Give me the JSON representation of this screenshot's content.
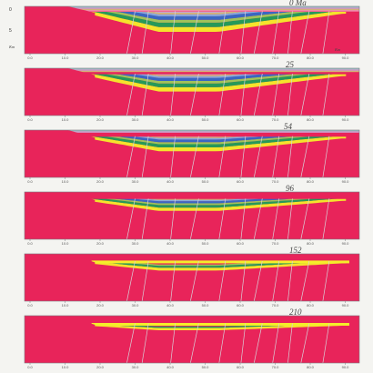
{
  "colors": {
    "basement": "#e8245a",
    "syn_rift": "#f5ee2a",
    "sag_green": "#1aa05a",
    "light_green": "#9ccc5a",
    "blue": "#2f6cc8",
    "light_blue": "#7fb2e6",
    "tan": "#d2c07a",
    "lavender": "#c6b6e2",
    "pink_light": "#f2a6c2",
    "teal": "#8fcfcf",
    "fault": "#d8d0d8",
    "frame": "#7a7a80"
  },
  "panels": [
    {
      "age": "0 Ma",
      "depth_labels": [
        "0",
        "5",
        "Km"
      ],
      "x_unit": "Km"
    },
    {
      "age": "25",
      "depth_labels": [],
      "x_unit": ""
    },
    {
      "age": "54",
      "depth_labels": [],
      "x_unit": ""
    },
    {
      "age": "96",
      "depth_labels": [],
      "x_unit": ""
    },
    {
      "age": "152",
      "depth_labels": [],
      "x_unit": ""
    },
    {
      "age": "210",
      "depth_labels": [],
      "x_unit": ""
    }
  ],
  "x_ticks": [
    "0.0",
    "10.0",
    "20.0",
    "30.0",
    "40.0",
    "50.0",
    "60.0",
    "70.0",
    "80.0",
    "90.0"
  ]
}
